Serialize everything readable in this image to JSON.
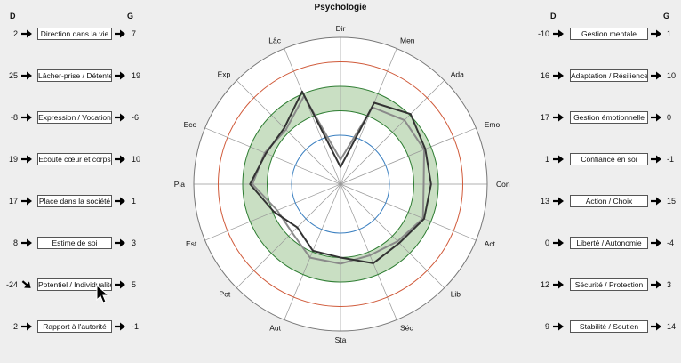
{
  "title": "Psychologie",
  "left_header": {
    "d": "D",
    "g": "G"
  },
  "right_header": {
    "d": "D",
    "g": "G"
  },
  "left_rows": [
    {
      "d": "2",
      "label": "Direction dans la vie",
      "g": "7",
      "arrow": "right"
    },
    {
      "d": "25",
      "label": "Lâcher-prise / Détente",
      "g": "19",
      "arrow": "right"
    },
    {
      "d": "-8",
      "label": "Expression / Vocation",
      "g": "-6",
      "arrow": "right"
    },
    {
      "d": "19",
      "label": "Ecoute cœur et corps",
      "g": "10",
      "arrow": "right"
    },
    {
      "d": "17",
      "label": "Place dans la société",
      "g": "1",
      "arrow": "right"
    },
    {
      "d": "8",
      "label": "Estime de soi",
      "g": "3",
      "arrow": "right"
    },
    {
      "d": "-24",
      "label": "Potentiel / Individualité",
      "g": "5",
      "arrow": "down-right"
    },
    {
      "d": "-2",
      "label": "Rapport à l'autorité",
      "g": "-1",
      "arrow": "right"
    }
  ],
  "right_rows": [
    {
      "d": "-10",
      "label": "Gestion mentale",
      "g": "1",
      "arrow": "right"
    },
    {
      "d": "16",
      "label": "Adaptation / Résilience",
      "g": "10",
      "arrow": "right"
    },
    {
      "d": "17",
      "label": "Gestion émotionnelle",
      "g": "0",
      "arrow": "right"
    },
    {
      "d": "1",
      "label": "Confiance en soi",
      "g": "-1",
      "arrow": "right"
    },
    {
      "d": "13",
      "label": "Action / Choix",
      "g": "15",
      "arrow": "right"
    },
    {
      "d": "0",
      "label": "Liberté / Autonomie",
      "g": "-4",
      "arrow": "right"
    },
    {
      "d": "12",
      "label": "Sécurité / Protection",
      "g": "3",
      "arrow": "right"
    },
    {
      "d": "9",
      "label": "Stabilité / Soutien",
      "g": "14",
      "arrow": "right"
    }
  ],
  "chart_data": {
    "type": "radar",
    "axes": [
      "Dir",
      "Men",
      "Ada",
      "Emo",
      "Con",
      "Act",
      "Lib",
      "Séc",
      "Sta",
      "Aut",
      "Pot",
      "Est",
      "Pla",
      "Eco",
      "Exp",
      "Lâc"
    ],
    "rlim": [
      -60,
      60
    ],
    "rings": [
      {
        "value": -20,
        "color": "#3a7fc0"
      },
      {
        "value": 0,
        "color": "#2e7d32"
      },
      {
        "value": 20,
        "color": "#2e7d32"
      },
      {
        "value": 40,
        "color": "#d05a3a"
      },
      {
        "value": 60,
        "color": "#777777"
      }
    ],
    "band": {
      "from": 0,
      "to": 20,
      "color": "#c9dfc3"
    },
    "series": [
      {
        "values": [
          -46,
          12,
          21,
          15,
          14,
          14,
          8,
          10,
          0,
          -1,
          -10,
          -1,
          14,
          6,
          5,
          22
        ],
        "color": "#333333"
      },
      {
        "values": [
          -40,
          8,
          14,
          14,
          8,
          13,
          6,
          3,
          5,
          5,
          -4,
          -4,
          12,
          7,
          3,
          18
        ],
        "color": "#8a8a8a"
      }
    ]
  }
}
